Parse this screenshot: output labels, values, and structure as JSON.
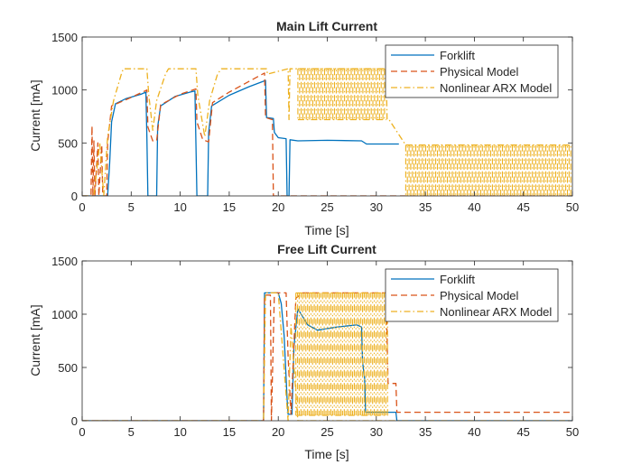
{
  "figure": {
    "background": "#ffffff"
  },
  "chart_data": [
    {
      "type": "line",
      "title": "Main Lift Current",
      "xlabel": "Time [s]",
      "ylabel": "Current [mA]",
      "xlim": [
        0,
        50
      ],
      "ylim": [
        0,
        1500
      ],
      "xticks": [
        0,
        5,
        10,
        15,
        20,
        25,
        30,
        35,
        40,
        45,
        50
      ],
      "yticks": [
        0,
        500,
        1000,
        1500
      ],
      "grid": false,
      "legend_position": "top-right",
      "series": [
        {
          "name": "Forklift",
          "color": "#0072BD",
          "style": "solid",
          "points": [
            [
              0,
              0
            ],
            [
              2.6,
              0
            ],
            [
              2.8,
              300
            ],
            [
              3.0,
              700
            ],
            [
              3.4,
              870
            ],
            [
              4.5,
              920
            ],
            [
              6.0,
              960
            ],
            [
              6.5,
              980
            ],
            [
              6.6,
              550
            ],
            [
              6.7,
              0
            ],
            [
              7.6,
              0
            ],
            [
              7.7,
              650
            ],
            [
              8.0,
              850
            ],
            [
              9.5,
              940
            ],
            [
              11.0,
              980
            ],
            [
              11.5,
              990
            ],
            [
              11.6,
              500
            ],
            [
              11.7,
              0
            ],
            [
              12.8,
              0
            ],
            [
              12.9,
              600
            ],
            [
              13.2,
              850
            ],
            [
              15,
              950
            ],
            [
              17,
              1030
            ],
            [
              18.7,
              1090
            ],
            [
              18.8,
              740
            ],
            [
              19.5,
              730
            ],
            [
              19.6,
              600
            ],
            [
              20.0,
              550
            ],
            [
              20.8,
              540
            ],
            [
              20.9,
              0
            ],
            [
              21.1,
              0
            ],
            [
              21.2,
              530
            ],
            [
              22,
              520
            ],
            [
              25,
              525
            ],
            [
              28.5,
              520
            ],
            [
              29,
              490
            ],
            [
              32.3,
              490
            ]
          ]
        },
        {
          "name": "Physical Model",
          "color": "#D95319",
          "style": "dashed",
          "points": [
            [
              0,
              0
            ],
            [
              0.9,
              0
            ],
            [
              1.0,
              660
            ],
            [
              1.1,
              0
            ],
            [
              1.2,
              520
            ],
            [
              1.3,
              0
            ],
            [
              1.6,
              500
            ],
            [
              1.7,
              0
            ],
            [
              2.0,
              480
            ],
            [
              2.1,
              0
            ],
            [
              2.5,
              0
            ],
            [
              2.6,
              500
            ],
            [
              3.0,
              850
            ],
            [
              5,
              930
            ],
            [
              6.6,
              1000
            ],
            [
              6.7,
              650
            ],
            [
              7.2,
              520
            ],
            [
              7.6,
              520
            ],
            [
              8.0,
              860
            ],
            [
              10,
              960
            ],
            [
              11.6,
              1010
            ],
            [
              11.7,
              700
            ],
            [
              12.3,
              530
            ],
            [
              12.9,
              510
            ],
            [
              13.3,
              880
            ],
            [
              15,
              980
            ],
            [
              18.6,
              1160
            ],
            [
              18.7,
              740
            ],
            [
              19.4,
              720
            ],
            [
              19.5,
              0
            ],
            [
              50,
              0
            ]
          ]
        },
        {
          "name": "Nonlinear ARX Model",
          "color": "#EDB120",
          "style": "dashdot",
          "points": [
            [
              0,
              0
            ],
            [
              1.2,
              0
            ],
            [
              1.8,
              500
            ],
            [
              2.2,
              0
            ],
            [
              2.6,
              560
            ],
            [
              3.2,
              900
            ],
            [
              4.0,
              1150
            ],
            [
              4.2,
              1200
            ],
            [
              6.6,
              1200
            ],
            [
              6.8,
              950
            ],
            [
              7.2,
              620
            ],
            [
              7.6,
              900
            ],
            [
              8.5,
              1150
            ],
            [
              8.8,
              1200
            ],
            [
              11.6,
              1200
            ],
            [
              11.8,
              950
            ],
            [
              12.5,
              560
            ],
            [
              13.0,
              900
            ],
            [
              13.8,
              1150
            ],
            [
              14.2,
              1200
            ],
            [
              18.8,
              1200
            ],
            [
              18.9,
              1150
            ],
            [
              21.0,
              1200
            ],
            [
              21.1,
              720
            ],
            [
              21.2,
              1200
            ],
            [
              31.0,
              1200
            ],
            [
              31.1,
              720
            ],
            [
              31.3,
              720
            ],
            [
              33.0,
              480
            ],
            [
              50,
              480
            ]
          ],
          "oscillation_bands": [
            {
              "x_start": 22.0,
              "x_end": 31.0,
              "y_low": 720,
              "y_high": 1200
            },
            {
              "x_start": 33.0,
              "x_end": 50.0,
              "y_low": 0,
              "y_high": 480
            }
          ]
        }
      ]
    },
    {
      "type": "line",
      "title": "Free Lift Current",
      "xlabel": "Time [s]",
      "ylabel": "Current [mA]",
      "xlim": [
        0,
        50
      ],
      "ylim": [
        0,
        1500
      ],
      "xticks": [
        0,
        5,
        10,
        15,
        20,
        25,
        30,
        35,
        40,
        45,
        50
      ],
      "yticks": [
        0,
        500,
        1000,
        1500
      ],
      "grid": false,
      "legend_position": "top-right",
      "series": [
        {
          "name": "Forklift",
          "color": "#0072BD",
          "style": "solid",
          "points": [
            [
              0,
              0
            ],
            [
              18.5,
              0
            ],
            [
              18.6,
              1200
            ],
            [
              20.0,
              1200
            ],
            [
              20.3,
              1100
            ],
            [
              20.6,
              800
            ],
            [
              20.9,
              200
            ],
            [
              21.0,
              60
            ],
            [
              21.4,
              60
            ],
            [
              21.6,
              700
            ],
            [
              22.0,
              1050
            ],
            [
              23.0,
              900
            ],
            [
              24.0,
              850
            ],
            [
              26.0,
              880
            ],
            [
              28.0,
              900
            ],
            [
              28.5,
              880
            ],
            [
              28.6,
              550
            ],
            [
              28.8,
              400
            ],
            [
              28.9,
              80
            ],
            [
              32.0,
              80
            ],
            [
              32.1,
              0
            ],
            [
              50,
              0
            ]
          ]
        },
        {
          "name": "Physical Model",
          "color": "#D95319",
          "style": "dashed",
          "points": [
            [
              0,
              0
            ],
            [
              18.5,
              0
            ],
            [
              18.6,
              1180
            ],
            [
              19.2,
              1180
            ],
            [
              19.3,
              0
            ],
            [
              19.6,
              1200
            ],
            [
              20.8,
              1200
            ],
            [
              21.0,
              600
            ],
            [
              21.3,
              60
            ],
            [
              21.8,
              1150
            ],
            [
              22.5,
              1200
            ],
            [
              31.0,
              1200
            ],
            [
              31.2,
              350
            ],
            [
              32.0,
              350
            ],
            [
              32.1,
              80
            ],
            [
              50,
              80
            ]
          ]
        },
        {
          "name": "Nonlinear ARX Model",
          "color": "#EDB120",
          "style": "dashdot",
          "points": [
            [
              0,
              0
            ],
            [
              18.5,
              0
            ],
            [
              18.7,
              1200
            ],
            [
              20.0,
              1200
            ],
            [
              21.0,
              0
            ],
            [
              21.3,
              900
            ],
            [
              22.0,
              0
            ],
            [
              31.5,
              0
            ],
            [
              32.0,
              0
            ],
            [
              50,
              0
            ]
          ],
          "oscillation_bands": [
            {
              "x_start": 21.8,
              "x_end": 31.2,
              "y_low": 50,
              "y_high": 1200
            }
          ]
        }
      ]
    }
  ]
}
